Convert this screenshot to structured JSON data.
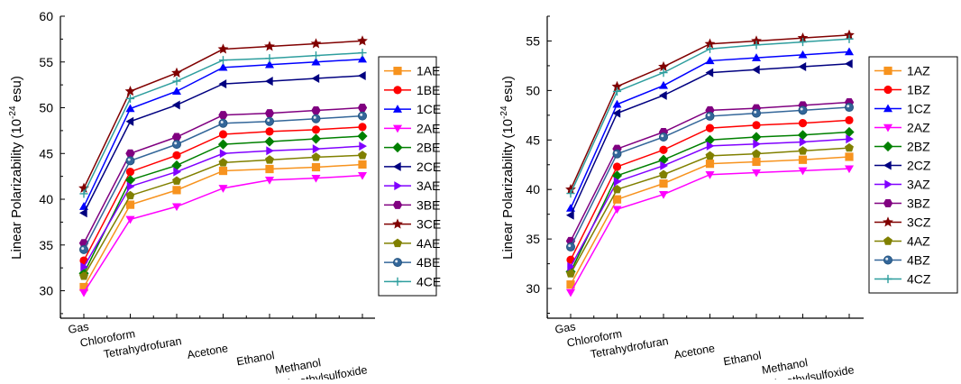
{
  "chart_data": [
    {
      "type": "line",
      "ylabel_main": "Linear Polarizability (10",
      "ylabel_exp": "-24",
      "ylabel_unit": " esu)",
      "categories": [
        "Gas",
        "Chloroform",
        "Tetrahydrofuran",
        "Acetone",
        "Ethanol",
        "Methanol",
        "Dimethylsulfoxide"
      ],
      "ylim": [
        27,
        60
      ],
      "yticks": [
        30,
        35,
        40,
        45,
        50,
        55,
        60
      ],
      "legend_position": "right",
      "series": [
        {
          "name": "1AE",
          "color": "#f7931e",
          "marker": "square",
          "values": [
            30.4,
            39.4,
            41.0,
            43.1,
            43.3,
            43.5,
            43.8
          ]
        },
        {
          "name": "1BE",
          "color": "#ff0000",
          "marker": "circle",
          "values": [
            33.3,
            43.0,
            44.8,
            47.1,
            47.4,
            47.6,
            47.9
          ]
        },
        {
          "name": "1CE",
          "color": "#0000ff",
          "marker": "triangle-up",
          "values": [
            39.2,
            49.9,
            51.8,
            54.4,
            54.7,
            55.0,
            55.3
          ]
        },
        {
          "name": "2AE",
          "color": "#ff00ff",
          "marker": "triangle-down",
          "values": [
            29.8,
            37.8,
            39.2,
            41.2,
            42.1,
            42.3,
            42.6
          ]
        },
        {
          "name": "2BE",
          "color": "#008000",
          "marker": "diamond",
          "values": [
            31.9,
            42.1,
            43.7,
            46.0,
            46.3,
            46.6,
            46.9
          ]
        },
        {
          "name": "2CE",
          "color": "#000080",
          "marker": "triangle-left",
          "values": [
            38.5,
            48.5,
            50.3,
            52.6,
            52.9,
            53.2,
            53.5
          ]
        },
        {
          "name": "3AE",
          "color": "#8000ff",
          "marker": "triangle-right",
          "values": [
            32.6,
            41.4,
            43.0,
            45.0,
            45.3,
            45.5,
            45.8
          ]
        },
        {
          "name": "3BE",
          "color": "#800080",
          "marker": "hexagon",
          "values": [
            35.2,
            45.0,
            46.8,
            49.2,
            49.4,
            49.7,
            50.0
          ]
        },
        {
          "name": "3CE",
          "color": "#800000",
          "marker": "star",
          "values": [
            41.2,
            51.8,
            53.8,
            56.4,
            56.7,
            57.0,
            57.3
          ]
        },
        {
          "name": "4AE",
          "color": "#808000",
          "marker": "pentagon",
          "values": [
            31.6,
            40.4,
            42.0,
            44.0,
            44.3,
            44.6,
            44.8
          ]
        },
        {
          "name": "4BE",
          "color": "#336699",
          "marker": "ball",
          "values": [
            34.5,
            44.2,
            46.0,
            48.3,
            48.5,
            48.8,
            49.1
          ]
        },
        {
          "name": "4CE",
          "color": "#2e9e9e",
          "marker": "plus",
          "values": [
            40.6,
            51.0,
            52.9,
            55.2,
            55.4,
            55.7,
            56.0
          ]
        }
      ]
    },
    {
      "type": "line",
      "ylabel_main": "Linear Polarizability (10",
      "ylabel_exp": "-24",
      "ylabel_unit": " esu)",
      "categories": [
        "Gas",
        "Chloroform",
        "Tetrahydrofuran",
        "Acetone",
        "Ethanol",
        "Methanol",
        "Dimethylsulfoxide"
      ],
      "ylim": [
        27,
        57.5
      ],
      "yticks": [
        30,
        35,
        40,
        45,
        50,
        55
      ],
      "legend_position": "right",
      "series": [
        {
          "name": "1AZ",
          "color": "#f7931e",
          "marker": "square",
          "values": [
            30.4,
            39.0,
            40.6,
            42.6,
            42.8,
            43.0,
            43.3
          ]
        },
        {
          "name": "1BZ",
          "color": "#ff0000",
          "marker": "circle",
          "values": [
            32.9,
            42.3,
            44.0,
            46.2,
            46.5,
            46.7,
            47.0
          ]
        },
        {
          "name": "1CZ",
          "color": "#0000ff",
          "marker": "triangle-up",
          "values": [
            38.1,
            48.6,
            50.5,
            53.0,
            53.3,
            53.6,
            53.9
          ]
        },
        {
          "name": "2AZ",
          "color": "#ff00ff",
          "marker": "triangle-down",
          "values": [
            29.6,
            38.0,
            39.5,
            41.5,
            41.7,
            41.9,
            42.1
          ]
        },
        {
          "name": "2BZ",
          "color": "#008000",
          "marker": "diamond",
          "values": [
            31.7,
            41.4,
            43.0,
            45.0,
            45.3,
            45.5,
            45.8
          ]
        },
        {
          "name": "2CZ",
          "color": "#000080",
          "marker": "triangle-left",
          "values": [
            37.4,
            47.7,
            49.5,
            51.8,
            52.1,
            52.4,
            52.7
          ]
        },
        {
          "name": "3AZ",
          "color": "#8000ff",
          "marker": "triangle-right",
          "values": [
            32.2,
            40.8,
            42.4,
            44.4,
            44.6,
            44.8,
            45.1
          ]
        },
        {
          "name": "3BZ",
          "color": "#800080",
          "marker": "hexagon",
          "values": [
            34.8,
            44.1,
            45.8,
            48.0,
            48.2,
            48.5,
            48.8
          ]
        },
        {
          "name": "3CZ",
          "color": "#800000",
          "marker": "star",
          "values": [
            40.0,
            50.4,
            52.4,
            54.7,
            55.0,
            55.3,
            55.6
          ]
        },
        {
          "name": "4AZ",
          "color": "#808000",
          "marker": "pentagon",
          "values": [
            31.5,
            40.0,
            41.5,
            43.4,
            43.6,
            43.9,
            44.2
          ]
        },
        {
          "name": "4BZ",
          "color": "#336699",
          "marker": "ball",
          "values": [
            34.2,
            43.6,
            45.3,
            47.4,
            47.7,
            48.0,
            48.3
          ]
        },
        {
          "name": "4CZ",
          "color": "#2e9e9e",
          "marker": "plus",
          "values": [
            39.6,
            49.9,
            51.8,
            54.2,
            54.6,
            54.9,
            55.2
          ]
        }
      ]
    }
  ]
}
